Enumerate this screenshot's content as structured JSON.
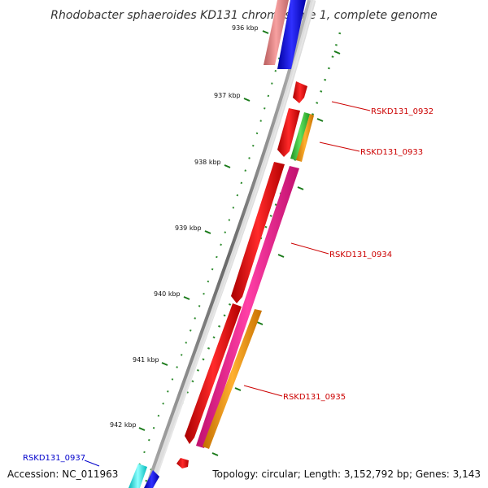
{
  "title": "Rhodobacter sphaeroides KD131 chromosome 1, complete genome",
  "footer": {
    "accession": "Accession: NC_011963",
    "summary": "Topology: circular; Length: 3,152,792 bp; Genes: 3,143"
  },
  "kbp_labels": [
    "936 kbp",
    "937 kbp",
    "938 kbp",
    "939 kbp",
    "940 kbp",
    "941 kbp",
    "942 kbp"
  ],
  "gene_labels": [
    {
      "text": "RSKD131_0932",
      "color": "#cc0000"
    },
    {
      "text": "RSKD131_0933",
      "color": "#cc0000"
    },
    {
      "text": "RSKD131_0934",
      "color": "#cc0000"
    },
    {
      "text": "RSKD131_0935",
      "color": "#cc0000"
    },
    {
      "text": "RSKD131_0937",
      "color": "#0000cc"
    }
  ],
  "colors": {
    "backbone": "#888888",
    "red": "#ff0000",
    "pink": "#ff1493",
    "salmon": "#f08080",
    "blue": "#0000ff",
    "green": "#33cc33",
    "orange": "#ff9900",
    "cyan": "#00ffff",
    "tick": "#1a7a1a"
  }
}
